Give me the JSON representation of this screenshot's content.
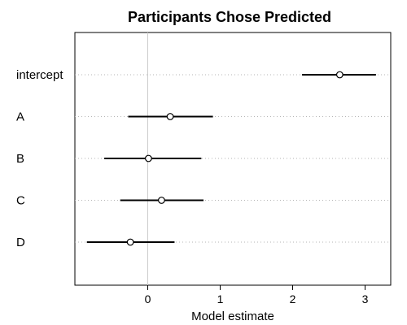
{
  "chart_data": {
    "type": "forest",
    "title": "Participants Chose Predicted",
    "xlabel": "Model estimate",
    "ylabel": "",
    "xlim": [
      -0.95,
      3.3
    ],
    "xticks": [
      0,
      1,
      2,
      3
    ],
    "reference_line_x": 0,
    "grid": "dotted horizontal guide per row",
    "rows": [
      {
        "label": "intercept",
        "estimate": 2.65,
        "lower": 2.13,
        "upper": 3.15
      },
      {
        "label": "A",
        "estimate": 0.31,
        "lower": -0.27,
        "upper": 0.9
      },
      {
        "label": "B",
        "estimate": 0.01,
        "lower": -0.6,
        "upper": 0.74
      },
      {
        "label": "C",
        "estimate": 0.19,
        "lower": -0.38,
        "upper": 0.77
      },
      {
        "label": "D",
        "estimate": -0.24,
        "lower": -0.84,
        "upper": 0.37
      }
    ]
  }
}
